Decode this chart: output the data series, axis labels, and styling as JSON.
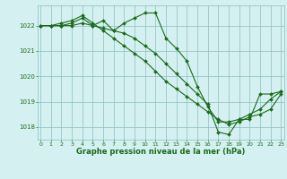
{
  "title": "Graphe pression niveau de la mer (hPa)",
  "xlabel_hours": [
    0,
    1,
    2,
    3,
    4,
    5,
    6,
    7,
    8,
    9,
    10,
    11,
    12,
    13,
    14,
    15,
    16,
    17,
    18,
    19,
    20,
    21,
    22,
    23
  ],
  "series1": [
    1022.0,
    1022.0,
    1022.0,
    1022.1,
    1022.3,
    1022.0,
    1022.2,
    1021.8,
    1022.1,
    1022.3,
    1022.5,
    1022.5,
    1021.5,
    1021.1,
    1020.6,
    1019.6,
    1018.8,
    1018.2,
    1018.2,
    1018.3,
    1018.3,
    1019.3,
    1019.3,
    1019.4
  ],
  "series2": [
    1022.0,
    1022.0,
    1022.1,
    1022.2,
    1022.4,
    1022.1,
    1021.8,
    1021.5,
    1021.2,
    1020.9,
    1020.6,
    1020.2,
    1019.8,
    1019.5,
    1019.2,
    1018.9,
    1018.6,
    1018.3,
    1018.1,
    1018.2,
    1018.4,
    1018.5,
    1018.7,
    1019.3
  ],
  "series3": [
    1022.0,
    1022.0,
    1022.0,
    1022.0,
    1022.1,
    1022.0,
    1021.9,
    1021.8,
    1021.7,
    1021.5,
    1021.2,
    1020.9,
    1020.5,
    1020.1,
    1019.7,
    1019.3,
    1018.9,
    1017.8,
    1017.7,
    1018.3,
    1018.5,
    1018.7,
    1019.1,
    1019.4
  ],
  "line_color": "#1a6b1a",
  "marker_color": "#1a6b1a",
  "bg_color": "#d4f0f0",
  "grid_color": "#8dbfbf",
  "tick_label_color": "#1a6b1a",
  "title_color": "#1a6b1a",
  "ylim": [
    1017.5,
    1022.8
  ],
  "yticks": [
    1018,
    1019,
    1020,
    1021,
    1022
  ],
  "xticks": [
    0,
    1,
    2,
    3,
    4,
    5,
    6,
    7,
    8,
    9,
    10,
    11,
    12,
    13,
    14,
    15,
    16,
    17,
    18,
    19,
    20,
    21,
    22,
    23
  ]
}
